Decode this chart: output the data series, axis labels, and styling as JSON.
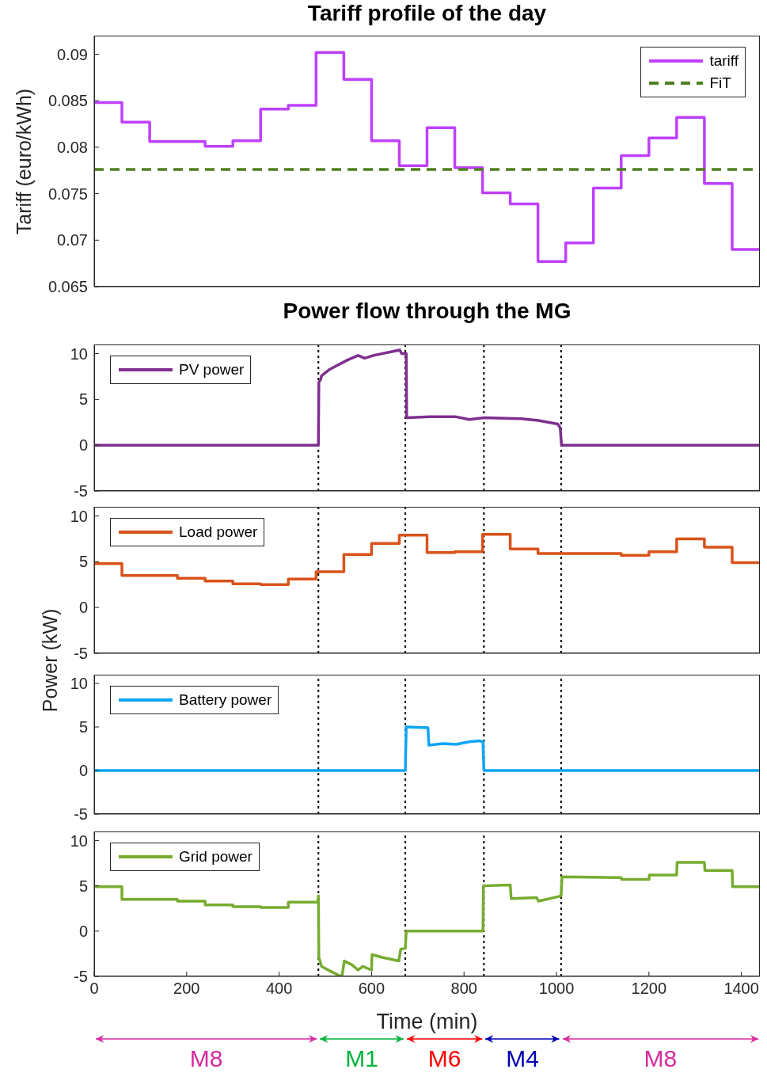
{
  "chart_data": [
    {
      "type": "step",
      "title": "Tariff profile of the day",
      "ylabel": "Tariff (euro/kWh)",
      "xlim": [
        0,
        1440
      ],
      "xticks": [
        0,
        200,
        400,
        600,
        800,
        1000,
        1200,
        1400
      ],
      "ylim": [
        0.065,
        0.092
      ],
      "yticks": [
        0.065,
        0.07,
        0.075,
        0.08,
        0.085,
        0.09
      ],
      "tick_labels": "y",
      "legend": "top right",
      "series": [
        {
          "name": "tariff",
          "color": "#bf40ff",
          "x": [
            0,
            60,
            120,
            240,
            300,
            360,
            420,
            480,
            540,
            600,
            660,
            720,
            780,
            840,
            900,
            960,
            1020,
            1080,
            1140,
            1200,
            1260,
            1320,
            1380,
            1440
          ],
          "values": [
            0.0848,
            0.0827,
            0.0806,
            0.0801,
            0.0807,
            0.0841,
            0.0845,
            0.0902,
            0.0873,
            0.0807,
            0.078,
            0.0821,
            0.0778,
            0.0751,
            0.0739,
            0.0677,
            0.0697,
            0.0756,
            0.0791,
            0.081,
            0.0832,
            0.0761,
            0.069,
            0.069
          ]
        },
        {
          "name": "FiT",
          "color": "#4f7f1f",
          "line_style": "dashed",
          "x": [
            0,
            1440
          ],
          "values": [
            0.0776,
            0.0776
          ]
        }
      ]
    },
    {
      "type": "line",
      "title": "Power flow through the MG",
      "ylabel": "Power (kW)",
      "xlim": [
        0,
        1440
      ],
      "xticks": [
        0,
        200,
        400,
        600,
        800,
        1000,
        1200,
        1400
      ],
      "ylim": [
        -5,
        11
      ],
      "yticks": [
        -5,
        0,
        5,
        10
      ],
      "tick_labels": "y",
      "legend": "top left",
      "ref_lines": [
        {
          "axis": "x",
          "value": 485,
          "color": "#000000",
          "line_style": "dotted"
        },
        {
          "axis": "x",
          "value": 673,
          "color": "#000000",
          "line_style": "dotted"
        },
        {
          "axis": "x",
          "value": 843,
          "color": "#000000",
          "line_style": "dotted"
        },
        {
          "axis": "x",
          "value": 1010,
          "color": "#000000",
          "line_style": "dotted"
        }
      ],
      "series": [
        {
          "name": "PV power",
          "color": "#7e2f8e",
          "x": [
            0,
            485,
            486,
            490,
            492,
            510,
            548,
            571,
            585,
            604,
            642,
            661,
            665,
            675,
            676,
            726,
            783,
            811,
            844,
            924,
            961,
            1003,
            1008,
            1011,
            1440
          ],
          "values": [
            0,
            0,
            6.9,
            7.2,
            7.6,
            8.3,
            9.3,
            9.8,
            9.5,
            9.8,
            10.2,
            10.4,
            10.0,
            10.0,
            3.0,
            3.1,
            3.1,
            2.8,
            3.0,
            2.9,
            2.7,
            2.3,
            1.9,
            0,
            0
          ]
        }
      ]
    },
    {
      "type": "step",
      "xlim": [
        0,
        1440
      ],
      "xticks": [
        0,
        200,
        400,
        600,
        800,
        1000,
        1200,
        1400
      ],
      "ylim": [
        -5,
        11
      ],
      "yticks": [
        -5,
        0,
        5,
        10
      ],
      "tick_labels": "y",
      "legend": "top left",
      "ref_lines": [
        {
          "axis": "x",
          "value": 485,
          "color": "#000000",
          "line_style": "dotted"
        },
        {
          "axis": "x",
          "value": 673,
          "color": "#000000",
          "line_style": "dotted"
        },
        {
          "axis": "x",
          "value": 843,
          "color": "#000000",
          "line_style": "dotted"
        },
        {
          "axis": "x",
          "value": 1010,
          "color": "#000000",
          "line_style": "dotted"
        }
      ],
      "series": [
        {
          "name": "Load power",
          "color": "#d95319",
          "x": [
            0,
            60,
            180,
            240,
            300,
            360,
            420,
            480,
            540,
            600,
            660,
            720,
            780,
            840,
            900,
            960,
            1140,
            1200,
            1260,
            1320,
            1380,
            1440
          ],
          "values": [
            4.8,
            3.5,
            3.2,
            2.9,
            2.6,
            2.5,
            3.1,
            3.9,
            5.8,
            7.0,
            7.9,
            6.0,
            6.1,
            8.0,
            6.4,
            5.9,
            5.7,
            6.1,
            7.5,
            6.6,
            4.9,
            4.9
          ]
        }
      ]
    },
    {
      "type": "line",
      "xlim": [
        0,
        1440
      ],
      "xticks": [
        0,
        200,
        400,
        600,
        800,
        1000,
        1200,
        1400
      ],
      "ylim": [
        -5,
        11
      ],
      "yticks": [
        -5,
        0,
        5,
        10
      ],
      "tick_labels": "y",
      "legend": "top left",
      "ref_lines": [
        {
          "axis": "x",
          "value": 485,
          "color": "#000000",
          "line_style": "dotted"
        },
        {
          "axis": "x",
          "value": 673,
          "color": "#000000",
          "line_style": "dotted"
        },
        {
          "axis": "x",
          "value": 843,
          "color": "#000000",
          "line_style": "dotted"
        },
        {
          "axis": "x",
          "value": 1010,
          "color": "#000000",
          "line_style": "dotted"
        }
      ],
      "series": [
        {
          "name": "Battery power",
          "color": "#0ea5f5",
          "x": [
            0,
            673,
            675,
            722,
            724,
            755,
            783,
            811,
            834,
            841,
            843,
            1440
          ],
          "values": [
            0,
            0,
            5.0,
            4.9,
            2.9,
            3.1,
            3.0,
            3.3,
            3.4,
            3.3,
            0,
            0
          ]
        }
      ]
    },
    {
      "type": "line",
      "xlabel": "Time (min)",
      "xlim": [
        0,
        1440
      ],
      "xticks": [
        0,
        200,
        400,
        600,
        800,
        1000,
        1200,
        1400
      ],
      "ylim": [
        -5,
        11
      ],
      "yticks": [
        -5,
        0,
        5,
        10
      ],
      "legend": "top left",
      "ref_lines": [
        {
          "axis": "x",
          "value": 485,
          "color": "#000000",
          "line_style": "dotted"
        },
        {
          "axis": "x",
          "value": 673,
          "color": "#000000",
          "line_style": "dotted"
        },
        {
          "axis": "x",
          "value": 843,
          "color": "#000000",
          "line_style": "dotted"
        },
        {
          "axis": "x",
          "value": 1010,
          "color": "#000000",
          "line_style": "dotted"
        }
      ],
      "annotations": [
        "M8",
        "M1",
        "M6",
        "M4",
        "M8"
      ],
      "series": [
        {
          "name": "Grid power",
          "color": "#77ac30",
          "x": [
            0,
            60,
            60,
            180,
            180,
            240,
            240,
            300,
            300,
            360,
            360,
            420,
            420,
            484,
            485,
            486,
            492,
            510,
            534,
            536,
            541,
            557,
            571,
            581,
            600,
            601,
            623,
            659,
            663,
            673,
            675,
            841,
            842,
            900,
            902,
            957,
            961,
            1003,
            1010,
            1012,
            1140,
            1141,
            1200,
            1201,
            1260,
            1261,
            1320,
            1321,
            1380,
            1381,
            1440
          ],
          "values": [
            4.9,
            4.9,
            3.5,
            3.5,
            3.3,
            3.3,
            2.9,
            2.9,
            2.7,
            2.7,
            2.6,
            2.6,
            3.2,
            3.2,
            3.9,
            -2.9,
            -3.9,
            -4.4,
            -5,
            -5,
            -3.3,
            -3.7,
            -4.3,
            -3.9,
            -4.3,
            -2.6,
            -2.9,
            -3.3,
            -2.0,
            -1.9,
            0,
            0,
            5.0,
            5.1,
            3.6,
            3.7,
            3.3,
            3.8,
            3.9,
            6.0,
            5.9,
            5.7,
            5.7,
            6.2,
            6.2,
            7.6,
            7.6,
            6.7,
            6.7,
            4.9,
            4.9
          ]
        }
      ]
    }
  ]
}
